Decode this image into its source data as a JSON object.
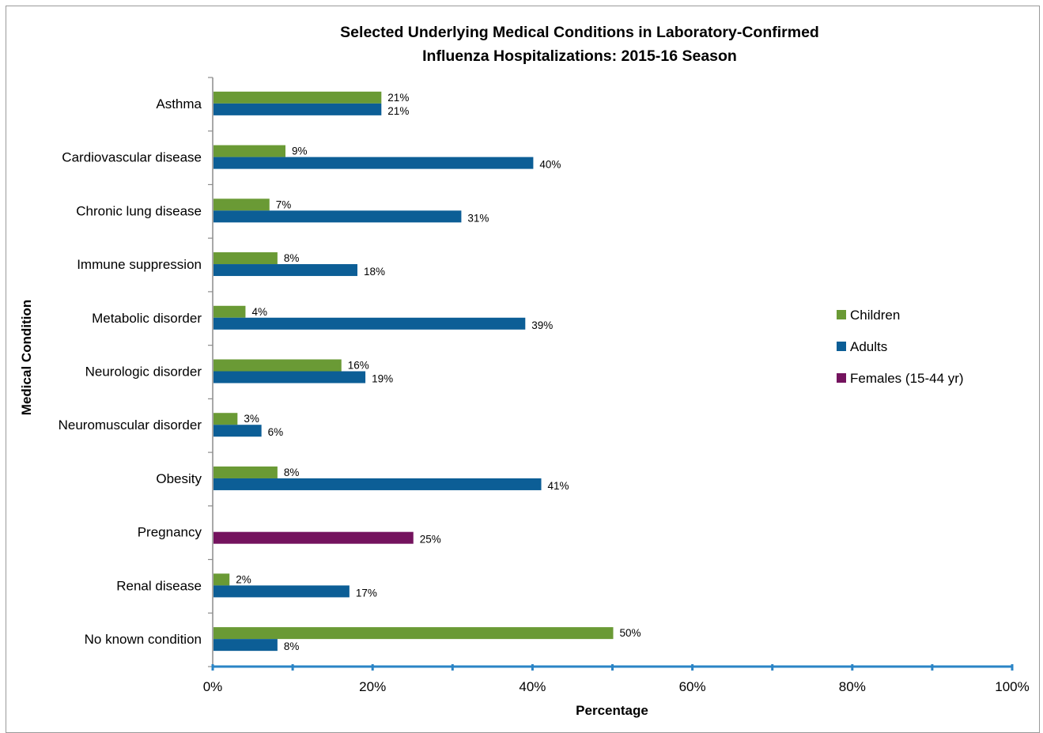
{
  "chart_data": {
    "type": "bar",
    "orientation": "horizontal",
    "title": "Selected Underlying Medical Conditions in Laboratory-Confirmed Influenza Hospitalizations: 2015-16 Season",
    "title_lines": [
      "Selected Underlying Medical Conditions in Laboratory-Confirmed",
      "Influenza Hospitalizations: 2015-16 Season"
    ],
    "xlabel": "Percentage",
    "ylabel": "Medical Condition",
    "xlim": [
      0,
      100
    ],
    "x_ticks": [
      0,
      20,
      40,
      60,
      80,
      100
    ],
    "x_tick_labels": [
      "0%",
      "20%",
      "40%",
      "60%",
      "80%",
      "100%"
    ],
    "value_suffix": "%",
    "categories": [
      "Asthma",
      "Cardiovascular disease",
      "Chronic lung disease",
      "Immune suppression",
      "Metabolic disorder",
      "Neurologic disorder",
      "Neuromuscular disorder",
      "Obesity",
      "Pregnancy",
      "Renal disease",
      "No known  condition"
    ],
    "series": [
      {
        "name": "Children",
        "color": "#6a9a35",
        "values": [
          21,
          9,
          7,
          8,
          4,
          16,
          3,
          8,
          null,
          2,
          50
        ]
      },
      {
        "name": "Adults",
        "color": "#0c5e96",
        "values": [
          21,
          40,
          31,
          18,
          39,
          19,
          6,
          41,
          null,
          17,
          8
        ]
      },
      {
        "name": "Females (15-44 yr)",
        "color": "#74135e",
        "values": [
          null,
          null,
          null,
          null,
          null,
          null,
          null,
          null,
          25,
          null,
          null
        ]
      }
    ],
    "legend_position": "right",
    "grid": false
  }
}
